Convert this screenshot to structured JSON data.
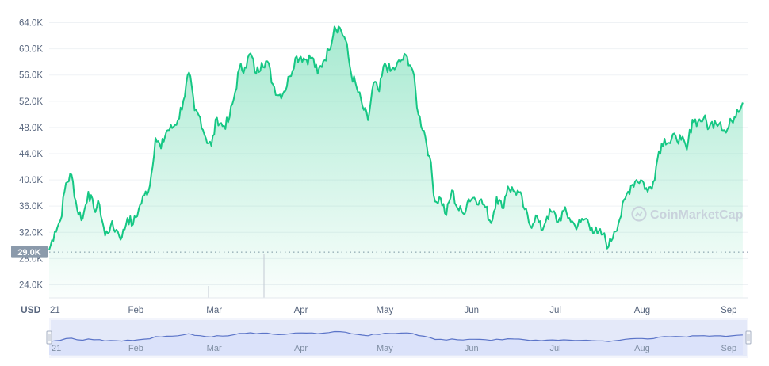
{
  "watermark": "CoinMarketCap",
  "unit_label": "USD",
  "current_price_label": "29.0K",
  "colors": {
    "line": "#16c784",
    "fill_top": "#16c784",
    "navigator_line": "#5b74c8",
    "navigator_fill": "#dbe2fa",
    "badge": "#8b9aab"
  },
  "chart_data": {
    "type": "area",
    "title": "",
    "xlabel": "",
    "ylabel": "",
    "ylim": [
      22000,
      66000
    ],
    "yticks": [
      "24.0K",
      "28.0K",
      "32.0K",
      "36.0K",
      "40.0K",
      "44.0K",
      "48.0K",
      "52.0K",
      "56.0K",
      "60.0K",
      "64.0K"
    ],
    "ytick_values": [
      24000,
      28000,
      32000,
      36000,
      40000,
      44000,
      48000,
      52000,
      56000,
      60000,
      64000
    ],
    "xticks": [
      "21",
      "Feb",
      "Mar",
      "Apr",
      "May",
      "Jun",
      "Jul",
      "Aug",
      "Sep"
    ],
    "xtick_dates": [
      "2021-01-01",
      "2021-02-01",
      "2021-03-01",
      "2021-04-01",
      "2021-05-01",
      "2021-06-01",
      "2021-07-01",
      "2021-08-01",
      "2021-09-01"
    ],
    "reference_line_value": 29000,
    "series": [
      {
        "x": [
          "2021-01-01",
          "2021-01-03",
          "2021-01-05",
          "2021-01-07",
          "2021-01-09",
          "2021-01-11",
          "2021-01-13",
          "2021-01-15",
          "2021-01-17",
          "2021-01-19",
          "2021-01-21",
          "2021-01-23",
          "2021-01-25",
          "2021-01-27",
          "2021-01-29",
          "2021-01-31",
          "2021-02-02",
          "2021-02-04",
          "2021-02-06",
          "2021-02-08",
          "2021-02-10",
          "2021-02-12",
          "2021-02-14",
          "2021-02-16",
          "2021-02-18",
          "2021-02-20",
          "2021-02-22",
          "2021-02-24",
          "2021-02-26",
          "2021-02-28",
          "2021-03-02",
          "2021-03-04",
          "2021-03-06",
          "2021-03-08",
          "2021-03-10",
          "2021-03-12",
          "2021-03-14",
          "2021-03-16",
          "2021-03-18",
          "2021-03-20",
          "2021-03-22",
          "2021-03-24",
          "2021-03-26",
          "2021-03-28",
          "2021-03-30",
          "2021-04-01",
          "2021-04-03",
          "2021-04-05",
          "2021-04-07",
          "2021-04-09",
          "2021-04-11",
          "2021-04-13",
          "2021-04-15",
          "2021-04-17",
          "2021-04-19",
          "2021-04-21",
          "2021-04-23",
          "2021-04-25",
          "2021-04-27",
          "2021-04-29",
          "2021-05-01",
          "2021-05-03",
          "2021-05-05",
          "2021-05-07",
          "2021-05-09",
          "2021-05-11",
          "2021-05-13",
          "2021-05-15",
          "2021-05-17",
          "2021-05-19",
          "2021-05-21",
          "2021-05-23",
          "2021-05-25",
          "2021-05-27",
          "2021-05-29",
          "2021-05-31",
          "2021-06-02",
          "2021-06-04",
          "2021-06-06",
          "2021-06-08",
          "2021-06-10",
          "2021-06-12",
          "2021-06-14",
          "2021-06-16",
          "2021-06-18",
          "2021-06-20",
          "2021-06-22",
          "2021-06-24",
          "2021-06-26",
          "2021-06-28",
          "2021-06-30",
          "2021-07-02",
          "2021-07-04",
          "2021-07-06",
          "2021-07-08",
          "2021-07-10",
          "2021-07-12",
          "2021-07-14",
          "2021-07-16",
          "2021-07-18",
          "2021-07-20",
          "2021-07-22",
          "2021-07-24",
          "2021-07-26",
          "2021-07-28",
          "2021-07-30",
          "2021-08-01",
          "2021-08-03",
          "2021-08-05",
          "2021-08-07",
          "2021-08-09",
          "2021-08-11",
          "2021-08-13",
          "2021-08-15",
          "2021-08-17",
          "2021-08-19",
          "2021-08-21",
          "2021-08-23",
          "2021-08-25",
          "2021-08-27",
          "2021-08-29",
          "2021-08-31",
          "2021-09-02",
          "2021-09-04",
          "2021-09-06"
        ],
        "y": [
          29300,
          32100,
          33800,
          39500,
          40800,
          35500,
          34100,
          38200,
          35600,
          36200,
          31500,
          33000,
          32400,
          31200,
          34200,
          33200,
          35500,
          37600,
          39100,
          46400,
          44800,
          47500,
          47900,
          49100,
          52100,
          56400,
          50600,
          49500,
          46400,
          45200,
          49500,
          48200,
          48800,
          52300,
          57000,
          57200,
          59300,
          56200,
          57900,
          58100,
          54600,
          52900,
          53500,
          55800,
          58600,
          58800,
          58400,
          58700,
          56200,
          58100,
          59800,
          63400,
          63200,
          61300,
          56200,
          54000,
          51300,
          49100,
          54800,
          53500,
          57800,
          56600,
          57200,
          58300,
          58800,
          56700,
          50000,
          47500,
          43600,
          36700,
          37200,
          34600,
          38400,
          35700,
          34900,
          37100,
          37300,
          36900,
          35800,
          33400,
          37400,
          35700,
          39000,
          38300,
          38100,
          35500,
          33000,
          34600,
          32300,
          34400,
          35100,
          33600,
          35300,
          34200,
          33000,
          33500,
          34100,
          32700,
          31800,
          31700,
          29800,
          32100,
          34000,
          37200,
          39100,
          40000,
          39900,
          38200,
          39700,
          44400,
          46300,
          45600,
          46700,
          46100,
          44600,
          49200,
          48900,
          49400,
          48000,
          49000,
          48800,
          47200,
          49000,
          50700,
          51800
        ]
      }
    ]
  }
}
